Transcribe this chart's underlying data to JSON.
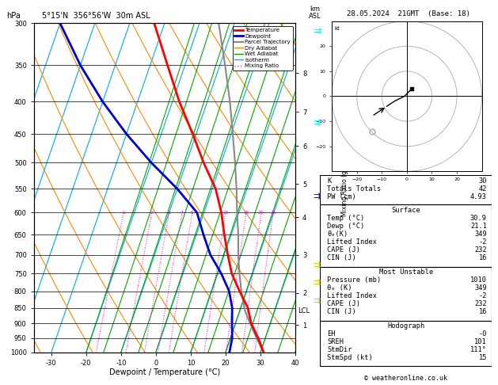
{
  "title_left": "5°15'N  356°56'W  30m ASL",
  "title_right": "28.05.2024  21GMT  (Base: 18)",
  "xlabel": "Dewpoint / Temperature (°C)",
  "pressure_levels": [
    300,
    350,
    400,
    450,
    500,
    550,
    600,
    650,
    700,
    750,
    800,
    850,
    900,
    950,
    1000
  ],
  "x_min": -35,
  "x_max": 40,
  "temp_profile_pressure": [
    1000,
    950,
    900,
    850,
    800,
    750,
    700,
    650,
    600,
    550,
    500,
    450,
    400,
    350,
    300
  ],
  "temp_profile_temp": [
    30.9,
    28.0,
    24.5,
    22.0,
    18.0,
    14.0,
    11.0,
    8.0,
    5.0,
    1.0,
    -5.0,
    -11.0,
    -18.0,
    -25.0,
    -33.0
  ],
  "dewp_profile_pressure": [
    1000,
    950,
    900,
    850,
    800,
    750,
    700,
    650,
    600,
    550,
    500,
    450,
    400,
    350,
    300
  ],
  "dewp_profile_temp": [
    21.1,
    20.5,
    19.0,
    17.5,
    15.0,
    11.0,
    6.0,
    2.0,
    -2.0,
    -10.0,
    -20.0,
    -30.0,
    -40.0,
    -50.0,
    -60.0
  ],
  "parcel_pressure": [
    1000,
    950,
    900,
    860,
    850,
    800,
    750,
    700,
    650,
    600,
    550,
    500,
    450,
    400,
    350,
    300
  ],
  "parcel_temp": [
    30.9,
    27.5,
    24.2,
    21.5,
    21.0,
    18.5,
    16.2,
    14.0,
    12.0,
    9.5,
    7.0,
    4.0,
    0.5,
    -3.5,
    -8.5,
    -14.5
  ],
  "lcl_pressure": 860,
  "km_ticks": [
    1,
    2,
    3,
    4,
    5,
    6,
    7,
    8
  ],
  "km_pressures": [
    905,
    805,
    700,
    610,
    540,
    470,
    415,
    360
  ],
  "mixing_ratios": [
    1,
    2,
    3,
    4,
    5,
    10,
    15,
    20,
    25
  ],
  "legend_entries": [
    {
      "label": "Temperature",
      "color": "#ff0000",
      "lw": 2,
      "ls": "-"
    },
    {
      "label": "Dewpoint",
      "color": "#0000cc",
      "lw": 2,
      "ls": "-"
    },
    {
      "label": "Parcel Trajectory",
      "color": "#888888",
      "lw": 1.5,
      "ls": "-"
    },
    {
      "label": "Dry Adiabat",
      "color": "#ff8800",
      "lw": 1,
      "ls": "-"
    },
    {
      "label": "Wet Adiabat",
      "color": "#00aa00",
      "lw": 1,
      "ls": "-"
    },
    {
      "label": "Isotherm",
      "color": "#00aaff",
      "lw": 1,
      "ls": "-"
    },
    {
      "label": "Mixing Ratio",
      "color": "#ff00ff",
      "lw": 1,
      "ls": ":"
    }
  ],
  "stats_K": "30",
  "stats_TT": "42",
  "stats_PW": "4.93",
  "surface_temp": "30.9",
  "surface_dewp": "21.1",
  "surface_theta": "349",
  "surface_li": "-2",
  "surface_cape": "232",
  "surface_cin": "16",
  "mu_pressure": "1010",
  "mu_theta": "349",
  "mu_li": "-2",
  "mu_cape": "232",
  "mu_cin": "16",
  "hodo_eh": "-0",
  "hodo_sreh": "101",
  "hodo_stmdir": "111",
  "hodo_stmspd": "15",
  "footer": "© weatheronline.co.uk"
}
